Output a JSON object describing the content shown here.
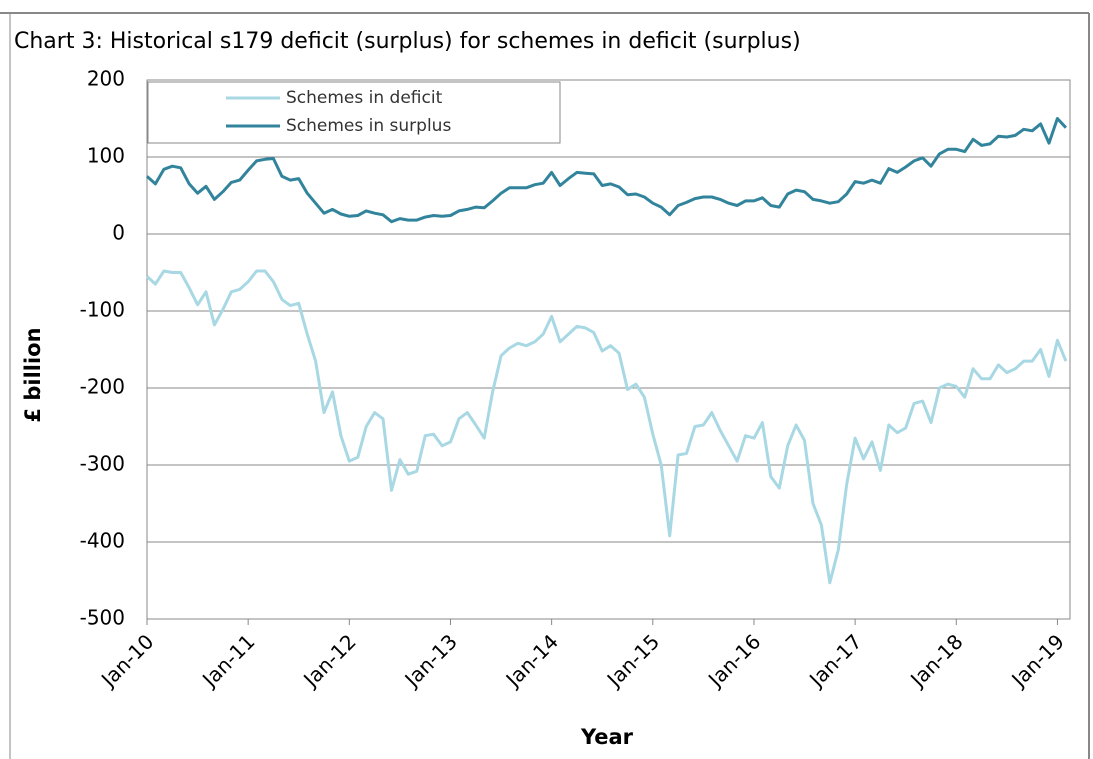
{
  "chart_data": {
    "type": "line",
    "title": "Chart 3: Historical s179 deficit (surplus) for schemes in deficit (surplus)",
    "x_label": "Year",
    "y_label": "£ billion",
    "categories": [
      "Jan-10",
      null,
      null,
      null,
      null,
      null,
      null,
      null,
      null,
      null,
      null,
      null,
      "Jan-11",
      null,
      null,
      null,
      null,
      null,
      null,
      null,
      null,
      null,
      null,
      null,
      "Jan-12",
      null,
      null,
      null,
      null,
      null,
      null,
      null,
      null,
      null,
      null,
      null,
      "Jan-13",
      null,
      null,
      null,
      null,
      null,
      null,
      null,
      null,
      null,
      null,
      null,
      "Jan-14",
      null,
      null,
      null,
      null,
      null,
      null,
      null,
      null,
      null,
      null,
      null,
      "Jan-15",
      null,
      null,
      null,
      null,
      null,
      null,
      null,
      null,
      null,
      null,
      null,
      "Jan-16",
      null,
      null,
      null,
      null,
      null,
      null,
      null,
      null,
      null,
      null,
      null,
      "Jan-17",
      null,
      null,
      null,
      null,
      null,
      null,
      null,
      null,
      null,
      null,
      null,
      "Jan-18",
      null,
      null,
      null,
      null,
      null,
      null,
      null,
      null,
      null,
      null,
      null,
      "Jan-19",
      null
    ],
    "series": [
      {
        "name": "Schemes in deficit",
        "color": "#a8d8e3",
        "values": [
          -55,
          -65,
          -48,
          -50,
          -50,
          -70,
          -92,
          -75,
          -118,
          -98,
          -75,
          -72,
          -62,
          -48,
          -48,
          -62,
          -85,
          -93,
          -90,
          -130,
          -165,
          -232,
          -205,
          -262,
          -295,
          -290,
          -250,
          -232,
          -240,
          -333,
          -293,
          -312,
          -308,
          -262,
          -260,
          -275,
          -270,
          -240,
          -232,
          -248,
          -265,
          -205,
          -158,
          -148,
          -142,
          -145,
          -140,
          -130,
          -107,
          -140,
          -130,
          -120,
          -122,
          -128,
          -152,
          -145,
          -155,
          -202,
          -195,
          -212,
          -260,
          -300,
          -392,
          -287,
          -285,
          -250,
          -248,
          -232,
          -255,
          -275,
          -295,
          -262,
          -265,
          -245,
          -315,
          -330,
          -275,
          -248,
          -268,
          -350,
          -378,
          -453,
          -410,
          -325,
          -265,
          -292,
          -270,
          -307,
          -248,
          -258,
          -252,
          -220,
          -217,
          -245,
          -200,
          -195,
          -198,
          -212,
          -175,
          -188,
          -188,
          -170,
          -180,
          -175,
          -165,
          -165,
          -150,
          -185,
          -138,
          -165
        ]
      },
      {
        "name": "Schemes in surplus",
        "color": "#31849b",
        "values": [
          75,
          65,
          84,
          88,
          86,
          65,
          53,
          62,
          45,
          55,
          67,
          70,
          83,
          95,
          97,
          98,
          75,
          70,
          72,
          53,
          40,
          27,
          32,
          26,
          23,
          24,
          30,
          27,
          25,
          16,
          20,
          18,
          18,
          22,
          24,
          23,
          24,
          30,
          32,
          35,
          34,
          43,
          53,
          60,
          60,
          60,
          64,
          66,
          80,
          63,
          72,
          80,
          79,
          78,
          63,
          65,
          61,
          51,
          52,
          48,
          40,
          35,
          25,
          37,
          41,
          46,
          48,
          48,
          45,
          40,
          37,
          43,
          43,
          47,
          37,
          35,
          52,
          57,
          55,
          45,
          43,
          40,
          42,
          52,
          68,
          66,
          70,
          66,
          85,
          80,
          87,
          95,
          99,
          88,
          104,
          110,
          110,
          107,
          123,
          115,
          117,
          127,
          126,
          128,
          136,
          134,
          143,
          118,
          150,
          138
        ]
      }
    ],
    "ylim": [
      -500,
      200
    ],
    "yticks": [
      -500,
      -400,
      -300,
      -200,
      -100,
      0,
      100,
      200
    ],
    "grid": true,
    "legend_position": "upper left"
  }
}
